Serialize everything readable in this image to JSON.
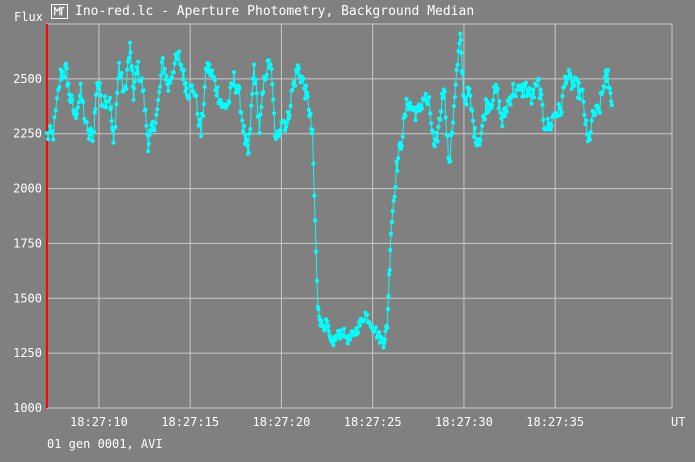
{
  "window": {
    "title": "Ino-red.lc - Aperture Photometry, Background Median",
    "icon": "lightcurve-app-icon"
  },
  "footer": {
    "text": "01 gen 0001, AVI"
  },
  "colors": {
    "background": "#808080",
    "grid": "#c8c8c8",
    "series": "#00ffff",
    "marker_line": "#ff0000",
    "text": "#ffffff"
  },
  "chart_data": {
    "type": "line",
    "title": "",
    "ylabel": "Flux",
    "xlabel": "UT",
    "ylim": [
      1000,
      2750
    ],
    "xlim_seconds": [
      7.1,
      41.4
    ],
    "yticks": [
      1000,
      1250,
      1500,
      1750,
      2000,
      2250,
      2500
    ],
    "xticks": [
      {
        "label": "18:27:10",
        "seconds": 10
      },
      {
        "label": "18:27:15",
        "seconds": 15
      },
      {
        "label": "18:27:20",
        "seconds": 20
      },
      {
        "label": "18:27:25",
        "seconds": 25
      },
      {
        "label": "18:27:30",
        "seconds": 30
      },
      {
        "label": "18:27:35",
        "seconds": 35
      }
    ],
    "grid": true,
    "start_marker_seconds": 7.15,
    "series": [
      {
        "name": "",
        "anchors": [
          [
            7.15,
            2240
          ],
          [
            7.5,
            2250
          ],
          [
            7.9,
            2520
          ],
          [
            8.2,
            2540
          ],
          [
            8.4,
            2420
          ],
          [
            8.7,
            2330
          ],
          [
            9.0,
            2440
          ],
          [
            9.4,
            2240
          ],
          [
            9.7,
            2250
          ],
          [
            9.9,
            2490
          ],
          [
            10.2,
            2400
          ],
          [
            10.6,
            2420
          ],
          [
            10.8,
            2200
          ],
          [
            11.1,
            2560
          ],
          [
            11.4,
            2420
          ],
          [
            11.7,
            2640
          ],
          [
            11.9,
            2430
          ],
          [
            12.1,
            2560
          ],
          [
            12.4,
            2460
          ],
          [
            12.7,
            2210
          ],
          [
            12.9,
            2260
          ],
          [
            13.2,
            2350
          ],
          [
            13.5,
            2580
          ],
          [
            13.8,
            2460
          ],
          [
            14.1,
            2560
          ],
          [
            14.4,
            2600
          ],
          [
            14.7,
            2490
          ],
          [
            14.9,
            2440
          ],
          [
            15.2,
            2460
          ],
          [
            15.6,
            2250
          ],
          [
            15.9,
            2560
          ],
          [
            16.2,
            2520
          ],
          [
            16.5,
            2440
          ],
          [
            16.8,
            2370
          ],
          [
            17.1,
            2390
          ],
          [
            17.4,
            2500
          ],
          [
            17.7,
            2420
          ],
          [
            18.0,
            2220
          ],
          [
            18.2,
            2150
          ],
          [
            18.5,
            2560
          ],
          [
            18.8,
            2270
          ],
          [
            19.1,
            2520
          ],
          [
            19.4,
            2580
          ],
          [
            19.7,
            2200
          ],
          [
            20.0,
            2320
          ],
          [
            20.3,
            2290
          ],
          [
            20.6,
            2450
          ],
          [
            20.9,
            2550
          ],
          [
            21.2,
            2480
          ],
          [
            21.5,
            2380
          ],
          [
            21.7,
            2230
          ],
          [
            22.0,
            1450
          ],
          [
            22.2,
            1380
          ],
          [
            22.5,
            1380
          ],
          [
            22.7,
            1290
          ],
          [
            23.0,
            1320
          ],
          [
            23.3,
            1350
          ],
          [
            23.7,
            1310
          ],
          [
            24.0,
            1340
          ],
          [
            24.3,
            1380
          ],
          [
            24.6,
            1430
          ],
          [
            24.9,
            1390
          ],
          [
            25.3,
            1330
          ],
          [
            25.6,
            1300
          ],
          [
            25.8,
            1380
          ],
          [
            26.0,
            1810
          ],
          [
            26.3,
            2090
          ],
          [
            26.6,
            2230
          ],
          [
            26.9,
            2400
          ],
          [
            27.2,
            2360
          ],
          [
            27.5,
            2340
          ],
          [
            27.8,
            2420
          ],
          [
            28.1,
            2380
          ],
          [
            28.4,
            2160
          ],
          [
            28.7,
            2330
          ],
          [
            28.9,
            2480
          ],
          [
            29.2,
            2090
          ],
          [
            29.5,
            2440
          ],
          [
            29.8,
            2690
          ],
          [
            30.0,
            2410
          ],
          [
            30.3,
            2430
          ],
          [
            30.6,
            2240
          ],
          [
            30.9,
            2230
          ],
          [
            31.2,
            2380
          ],
          [
            31.5,
            2400
          ],
          [
            31.8,
            2450
          ],
          [
            32.1,
            2300
          ],
          [
            32.4,
            2390
          ],
          [
            32.7,
            2450
          ],
          [
            33.1,
            2440
          ],
          [
            33.4,
            2460
          ],
          [
            33.7,
            2410
          ],
          [
            34.1,
            2480
          ],
          [
            34.4,
            2300
          ],
          [
            34.7,
            2280
          ],
          [
            35.0,
            2350
          ],
          [
            35.3,
            2350
          ],
          [
            35.6,
            2520
          ],
          [
            35.9,
            2480
          ],
          [
            36.2,
            2460
          ],
          [
            36.5,
            2420
          ],
          [
            36.8,
            2200
          ],
          [
            37.1,
            2340
          ],
          [
            37.4,
            2350
          ],
          [
            37.7,
            2490
          ],
          [
            37.9,
            2520
          ],
          [
            38.1,
            2380
          ]
        ]
      }
    ]
  }
}
